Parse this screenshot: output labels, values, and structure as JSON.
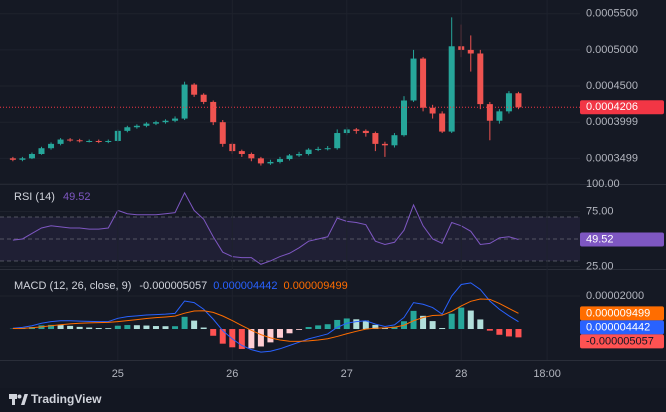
{
  "chart_data": [
    {
      "type": "candlestick",
      "x": [
        2,
        4,
        6,
        8,
        10,
        12,
        14,
        16,
        18,
        20,
        22,
        24,
        26,
        28,
        30,
        32,
        34,
        36,
        38,
        40,
        42,
        44,
        46,
        48,
        50,
        52,
        54,
        56,
        58,
        60,
        62,
        64,
        66,
        68,
        70,
        72,
        74,
        76,
        78,
        80,
        82,
        84,
        86,
        88,
        90,
        92,
        94,
        96,
        98,
        100,
        102,
        104,
        106,
        108
      ],
      "open": [
        0.00035,
        0.000348,
        0.00035,
        0.000356,
        0.000364,
        0.00037,
        0.000376,
        0.000375,
        0.000374,
        0.000374,
        0.000373,
        0.000374,
        0.000388,
        0.000393,
        0.000395,
        0.000398,
        0.0004,
        0.000402,
        0.000405,
        0.000452,
        0.000438,
        0.000428,
        0.0004,
        0.00037,
        0.00036,
        0.000356,
        0.00035,
        0.000343,
        0.000345,
        0.000349,
        0.000354,
        0.000356,
        0.000362,
        0.000363,
        0.000364,
        0.000385,
        0.00039,
        0.000388,
        0.000385,
        0.00037,
        0.000368,
        0.000382,
        0.00043,
        0.000488,
        0.00042,
        0.000412,
        0.000387,
        0.000505,
        0.0005,
        0.000495,
        0.000425,
        0.000402,
        0.000415,
        0.00044
      ],
      "high": [
        0.000352,
        0.000352,
        0.000358,
        0.000366,
        0.000372,
        0.000378,
        0.000378,
        0.000377,
        0.000376,
        0.000376,
        0.000376,
        0.00039,
        0.000395,
        0.000397,
        0.0004,
        0.000402,
        0.000404,
        0.000408,
        0.000456,
        0.000454,
        0.00044,
        0.00043,
        0.000403,
        0.000372,
        0.000362,
        0.000358,
        0.000352,
        0.000348,
        0.000352,
        0.000356,
        0.000359,
        0.000364,
        0.000366,
        0.000367,
        0.00039,
        0.000393,
        0.000392,
        0.00039,
        0.000387,
        0.000373,
        0.000385,
        0.000436,
        0.0005,
        0.00049,
        0.000424,
        0.000415,
        0.000545,
        0.000535,
        0.00052,
        0.0005,
        0.000428,
        0.000418,
        0.000443,
        0.000442
      ],
      "low": [
        0.000346,
        0.000346,
        0.000349,
        0.000355,
        0.000362,
        0.000368,
        0.000373,
        0.000372,
        0.000372,
        0.000371,
        0.000371,
        0.000373,
        0.000386,
        0.000391,
        0.000393,
        0.000396,
        0.000398,
        0.0004,
        0.000403,
        0.000435,
        0.000425,
        0.000396,
        0.000366,
        0.000356,
        0.000352,
        0.000346,
        0.00034,
        0.000341,
        0.000343,
        0.000347,
        0.000352,
        0.000354,
        0.00036,
        0.000361,
        0.000362,
        0.000382,
        0.000384,
        0.00038,
        0.00036,
        0.000352,
        0.000365,
        0.00038,
        0.000428,
        0.000415,
        0.000405,
        0.000385,
        0.000385,
        0.00049,
        0.00047,
        0.000418,
        0.000375,
        0.000398,
        0.000412,
        0.000418
      ],
      "close": [
        0.000348,
        0.00035,
        0.000356,
        0.000364,
        0.00037,
        0.000376,
        0.000375,
        0.000374,
        0.000374,
        0.000373,
        0.000374,
        0.000388,
        0.000393,
        0.000395,
        0.000398,
        0.0004,
        0.000402,
        0.000405,
        0.000452,
        0.000438,
        0.000428,
        0.0004,
        0.00037,
        0.00036,
        0.000356,
        0.00035,
        0.000343,
        0.000345,
        0.000349,
        0.000354,
        0.000356,
        0.000362,
        0.000363,
        0.000364,
        0.000385,
        0.00039,
        0.000388,
        0.000385,
        0.00037,
        0.000368,
        0.000382,
        0.00043,
        0.000488,
        0.00042,
        0.000412,
        0.000387,
        0.000505,
        0.0005,
        0.000495,
        0.000425,
        0.000402,
        0.000415,
        0.00044,
        0.0004206
      ],
      "up_color": "#26a69a",
      "down_color": "#ef5350",
      "last_price_color": "#f23645",
      "xlim": [
        -0.7,
        120.9
      ],
      "ylim": [
        0.0003145,
        0.000569
      ],
      "yticks": [
        {
          "value": 0.00055,
          "label": "0.0005500"
        },
        {
          "value": 0.0005,
          "label": "0.0005000"
        },
        {
          "value": 0.00045,
          "label": "0.0004500"
        },
        0.0003999,
        0.0003499
      ]
    },
    {
      "type": "line",
      "title": "RSI (14)",
      "x": [
        2,
        4,
        6,
        8,
        10,
        12,
        14,
        16,
        18,
        20,
        22,
        24,
        26,
        28,
        30,
        32,
        34,
        36,
        38,
        40,
        42,
        44,
        46,
        48,
        50,
        52,
        54,
        56,
        58,
        60,
        62,
        64,
        66,
        68,
        70,
        72,
        74,
        76,
        78,
        80,
        82,
        84,
        86,
        88,
        90,
        92,
        94,
        96,
        98,
        100,
        102,
        104,
        106,
        108
      ],
      "values": [
        49,
        50,
        55,
        60,
        62,
        61,
        60,
        60,
        59,
        59,
        60,
        76,
        73,
        72,
        72,
        72,
        73,
        74,
        92,
        76,
        68,
        52,
        38,
        34,
        33,
        33,
        27,
        30,
        34,
        37,
        42,
        48,
        50,
        52,
        69,
        66,
        65,
        63,
        48,
        45,
        47,
        58,
        81,
        62,
        50,
        46,
        65,
        62,
        57,
        45,
        46,
        51,
        52,
        49.52
      ],
      "color": "#7e57c2",
      "band_lines": [
        70,
        50,
        30
      ],
      "band_fill": "rgba(126,87,194,0.1)",
      "xlim": [
        -0.7,
        120.9
      ],
      "ylim": [
        22.7,
        99.1
      ],
      "yticks": [
        {
          "value": 100,
          "label": "100.00"
        },
        {
          "value": 75,
          "label": "75.00"
        },
        {
          "value": 25,
          "label": "25.00"
        }
      ]
    },
    {
      "type": "macd",
      "title": "MACD (12, 26, close, 9)",
      "x": [
        2,
        4,
        6,
        8,
        10,
        12,
        14,
        16,
        18,
        20,
        22,
        24,
        26,
        28,
        30,
        32,
        34,
        36,
        38,
        40,
        42,
        44,
        46,
        48,
        50,
        52,
        54,
        56,
        58,
        60,
        62,
        64,
        66,
        68,
        70,
        72,
        74,
        76,
        78,
        80,
        82,
        84,
        86,
        88,
        90,
        92,
        94,
        96,
        98,
        100,
        102,
        104,
        106,
        108
      ],
      "series": [
        {
          "color": "#2962ff",
          "values": [
            5e-07,
            1e-06,
            2e-06,
            3.5e-06,
            4.5e-06,
            5e-06,
            5e-06,
            4.8e-06,
            4.6e-06,
            4.5e-06,
            4.5e-06,
            6.5e-06,
            7.5e-06,
            8e-06,
            8.5e-06,
            8.7e-06,
            9e-06,
            9.5e-06,
            1.7e-05,
            1.6e-05,
            1.2e-05,
            6e-06,
            -1e-06,
            -6e-06,
            -1e-05,
            -1.25e-05,
            -1.4e-05,
            -1.35e-05,
            -1.2e-05,
            -1e-05,
            -8e-06,
            -6e-06,
            -4.5e-06,
            -3e-06,
            1e-06,
            3.5e-06,
            4.5e-06,
            5e-06,
            3e-06,
            1.5e-06,
            2.5e-06,
            7e-06,
            1.6e-05,
            1.5e-05,
            1.3e-05,
            9e-06,
            2e-05,
            2.7e-05,
            2.8e-05,
            2.4e-05,
            1.7e-05,
            1.2e-05,
            8e-06,
            4.442e-06
          ]
        },
        {
          "color": "#ff6d00",
          "values": [
            3e-07,
            4e-07,
            8e-07,
            1.3e-06,
            2e-06,
            2.6e-06,
            3.1e-06,
            3.5e-06,
            3.7e-06,
            3.9e-06,
            4e-06,
            4.5e-06,
            5.1e-06,
            5.7e-06,
            6.4e-06,
            6.9e-06,
            7.3e-06,
            7.8e-06,
            9.6e-06,
            1.09e-05,
            1.11e-05,
            1.01e-05,
            7.9e-06,
            5.1e-06,
            2.1e-06,
            -8e-07,
            -3.4e-06,
            -5.4e-06,
            -6.7e-06,
            -7.4e-06,
            -7.5e-06,
            -7.2e-06,
            -6.7e-06,
            -5.9e-06,
            -4.5e-06,
            -2.9e-06,
            -1.4e-06,
            -1e-07,
            5e-07,
            7e-07,
            1.1e-06,
            2.3e-06,
            5e-06,
            7e-06,
            8.2e-06,
            8.4e-06,
            1.07e-05,
            1.4e-05,
            1.68e-05,
            1.82e-05,
            1.8e-05,
            1.55e-05,
            1.25e-05,
            9.499e-06
          ]
        }
      ],
      "histogram": {
        "values": [
          2e-07,
          6e-07,
          1.2e-06,
          2.2e-06,
          2.5e-06,
          2.4e-06,
          1.9e-06,
          1.3e-06,
          9e-07,
          6e-07,
          5e-07,
          2e-06,
          2.4e-06,
          2.3e-06,
          2.1e-06,
          1.8e-06,
          1.7e-06,
          1.7e-06,
          7.4e-06,
          5.1e-06,
          9e-07,
          -4.1e-06,
          -8.9e-06,
          -1.11e-05,
          -1.21e-05,
          -1.17e-05,
          -1.06e-05,
          -8.1e-06,
          -5.3e-06,
          -2.6e-06,
          -5e-07,
          1.2e-06,
          2.2e-06,
          2.9e-06,
          5.5e-06,
          6.4e-06,
          5.9e-06,
          5.1e-06,
          2.5e-06,
          8e-07,
          1.4e-06,
          4.7e-06,
          1.1e-05,
          8e-06,
          4.8e-06,
          6e-07,
          9.3e-06,
          1.3e-05,
          1.12e-05,
          5.8e-06,
          -1e-06,
          -3.5e-06,
          -4.5e-06,
          -5.057e-06
        ],
        "colors": [
          "#26a69a",
          "#b2dfdb",
          "#ff5252",
          "#ffcdd2"
        ]
      },
      "xlim": [
        -0.7,
        120.9
      ],
      "ylim": [
        -1.88e-05,
        3.58e-05
      ],
      "yticks": [
        {
          "value": 2e-05,
          "label": "0.00002000"
        }
      ],
      "xticks": [
        {
          "value": 24,
          "label": "25"
        },
        {
          "value": 48,
          "label": "26"
        },
        {
          "value": 72,
          "label": "27"
        },
        {
          "value": 96,
          "label": "28"
        },
        {
          "value": 114,
          "label": "18:00"
        }
      ]
    }
  ],
  "brand": "TradingView"
}
